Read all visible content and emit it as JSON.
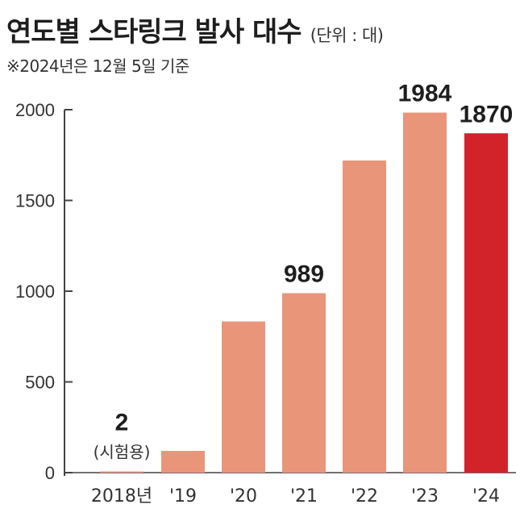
{
  "header": {
    "title": "연도별 스타링크 발사 대수",
    "unit": "(단위 : 대)",
    "note": "※2024년은 12월 5일 기준"
  },
  "chart_data": {
    "type": "bar",
    "title": "연도별 스타링크 발사 대수",
    "categories": [
      "2018년",
      "'19",
      "'20",
      "'21",
      "'22",
      "'23",
      "'24"
    ],
    "values": [
      2,
      120,
      833,
      989,
      1720,
      1984,
      1870
    ],
    "data_labels": [
      "2",
      "",
      "",
      "989",
      "",
      "1984",
      "1870"
    ],
    "annotations": [
      {
        "category": "2018년",
        "text": "(시험용)"
      }
    ],
    "ylim": [
      0,
      2000
    ],
    "yticks": [
      0,
      500,
      1000,
      1500,
      2000
    ],
    "ytick_labels": [
      "0",
      "500",
      "1000",
      "1500",
      "2000"
    ],
    "grid": false,
    "colors": {
      "bar": "#e9957a",
      "highlight_bar": "#d2232a",
      "axis": "#444444"
    },
    "highlight_category": "'24"
  }
}
